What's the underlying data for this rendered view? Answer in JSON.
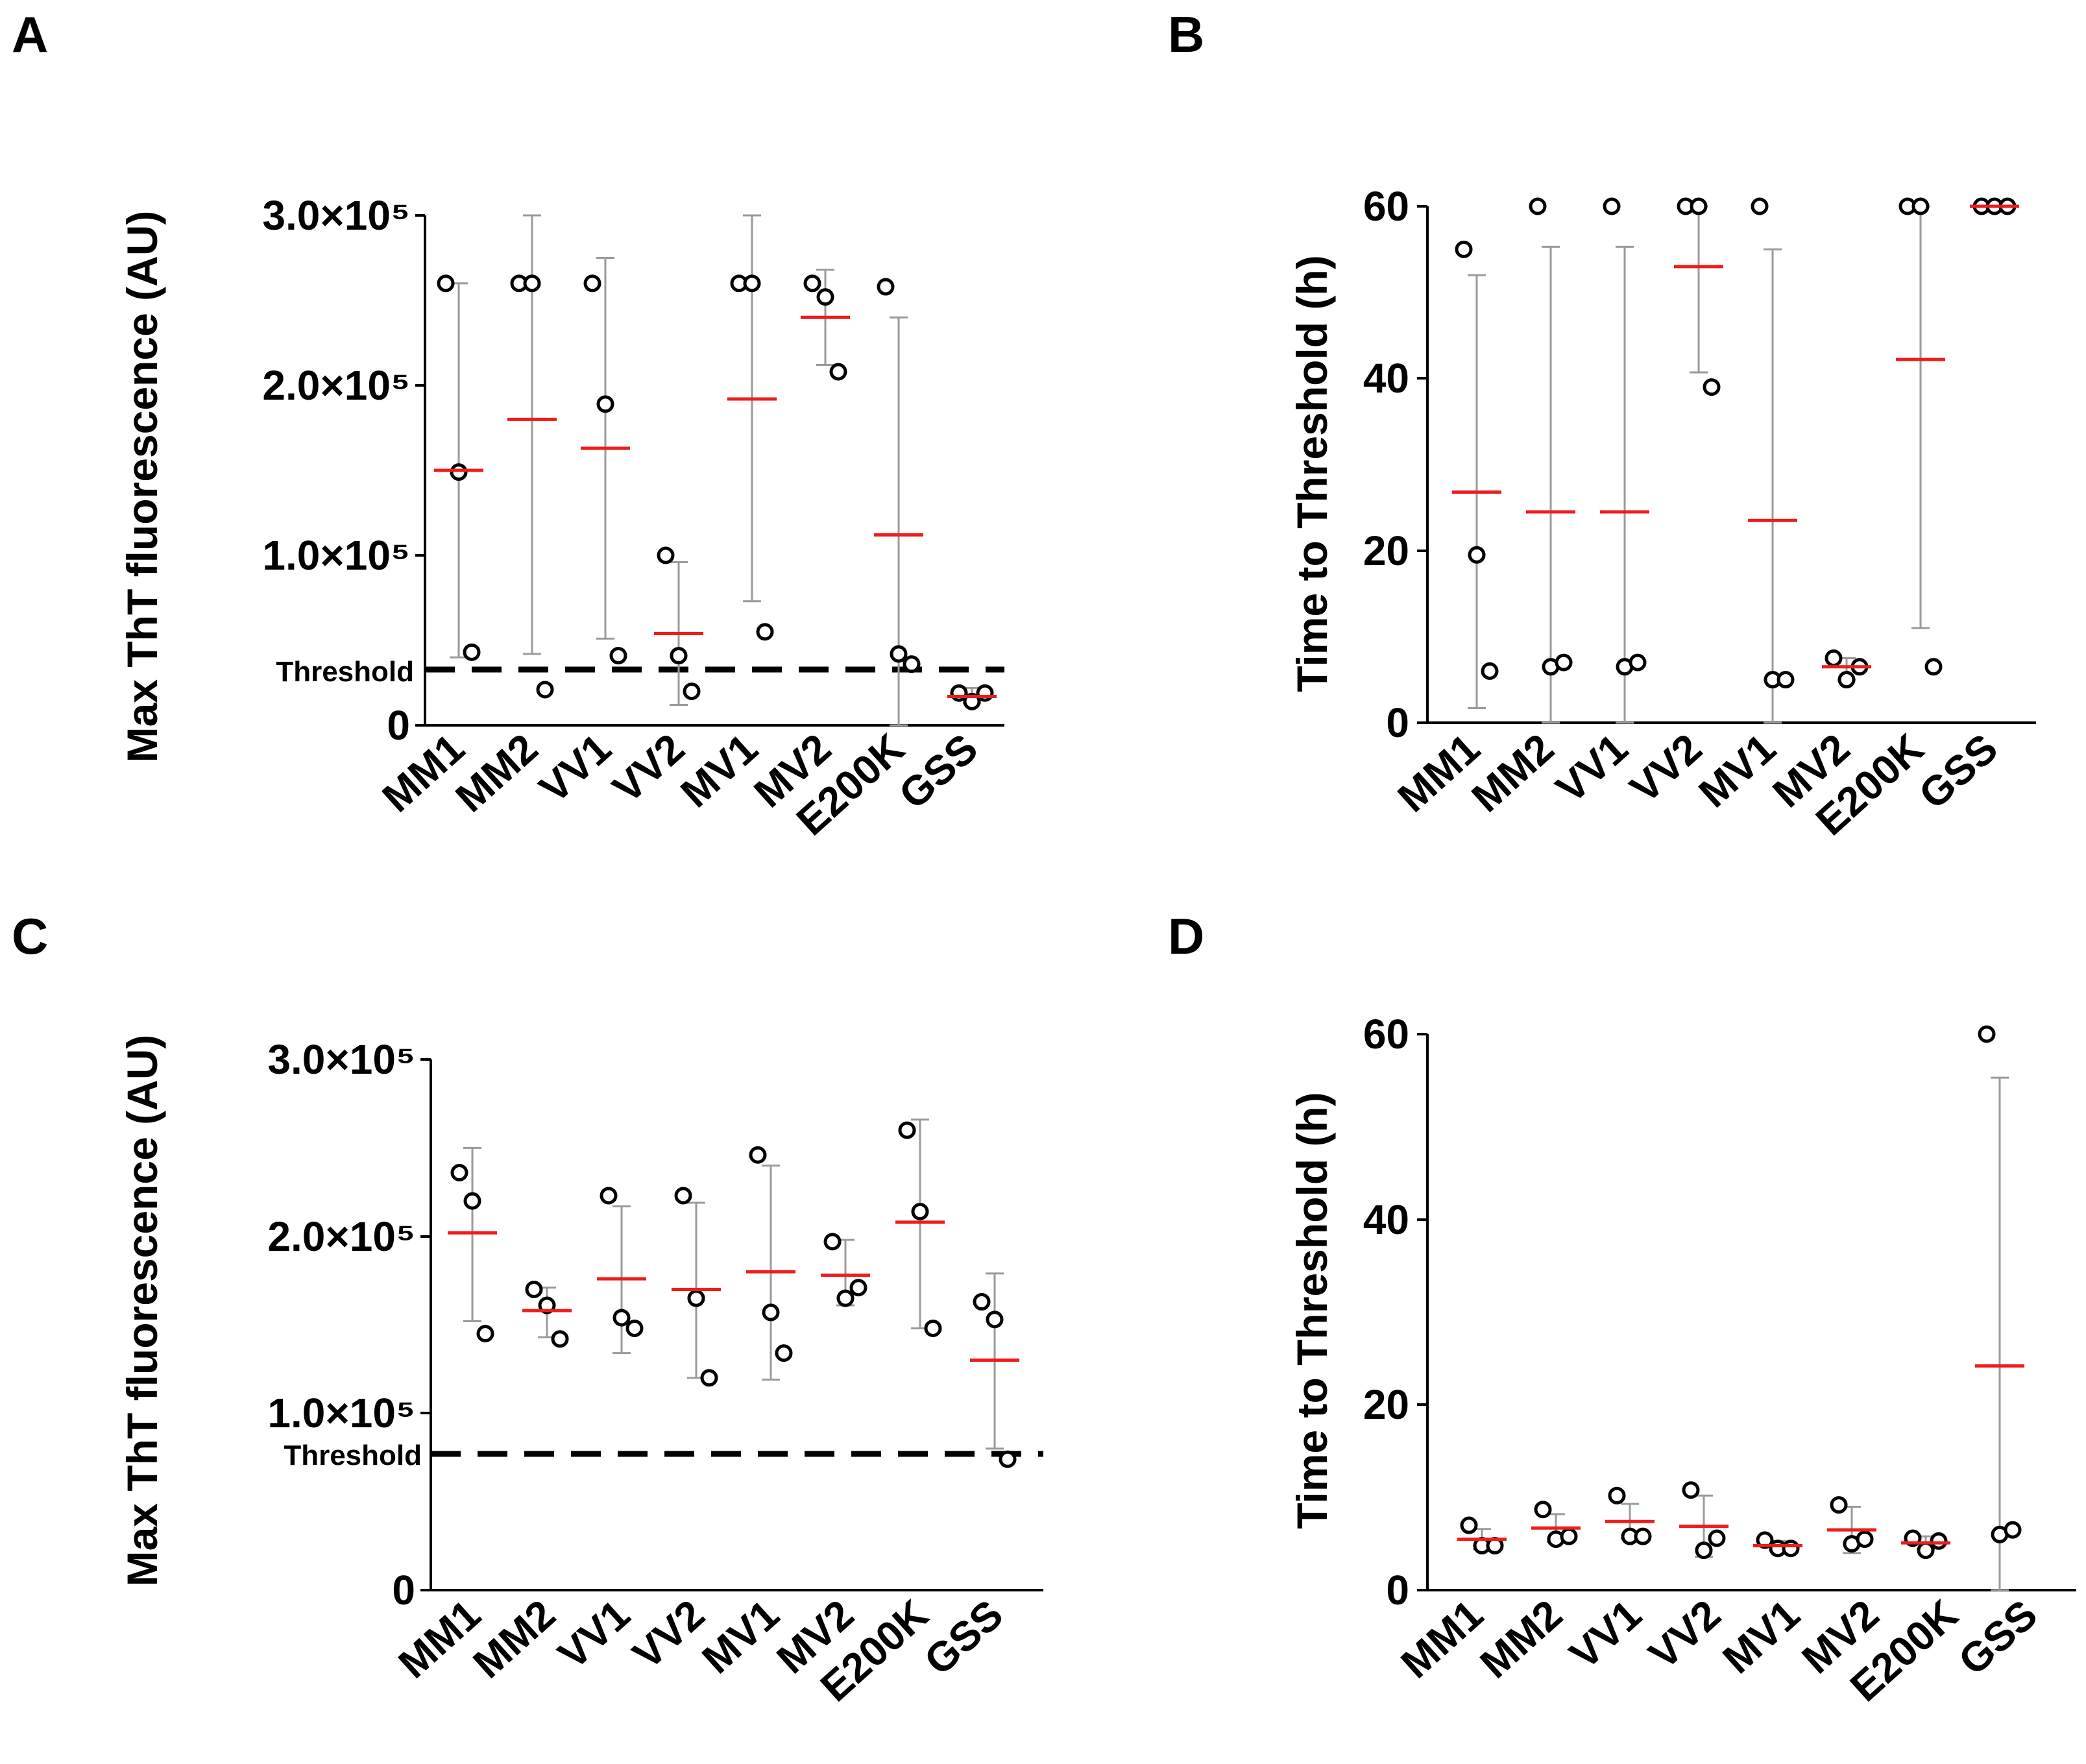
{
  "chart_data": [
    {
      "panel": "A",
      "type": "scatter",
      "ylabel": "Max ThT fluorescence (AU)",
      "ylim": [
        0,
        300000
      ],
      "yticks": [
        0,
        100000,
        200000,
        300000
      ],
      "ytick_labels": [
        "0",
        "1.0×10⁵",
        "2.0×10⁵",
        "3.0×10⁵"
      ],
      "threshold": {
        "label": "Threshold",
        "value": 33000
      },
      "categories": [
        "MM1",
        "MM2",
        "VV1",
        "VV2",
        "MV1",
        "MV2",
        "E200K",
        "GSS"
      ],
      "points": [
        [
          260000,
          149000,
          43000
        ],
        [
          260000,
          260000,
          21000
        ],
        [
          260000,
          189000,
          41000
        ],
        [
          100000,
          41000,
          20000
        ],
        [
          260000,
          260000,
          55000
        ],
        [
          260000,
          252000,
          208000
        ],
        [
          258000,
          42000,
          36000
        ],
        [
          19000,
          14000,
          19000
        ]
      ],
      "mean": [
        150000,
        180000,
        163000,
        54000,
        192000,
        240000,
        112000,
        17000
      ],
      "error": [
        [
          40000,
          260000
        ],
        [
          42000,
          300000
        ],
        [
          51000,
          275000
        ],
        [
          12000,
          96000
        ],
        [
          73000,
          300000
        ],
        [
          212000,
          268000
        ],
        [
          0,
          240000
        ],
        [
          13000,
          22000
        ]
      ]
    },
    {
      "panel": "B",
      "type": "scatter",
      "ylabel": "Time to Threshold (h)",
      "ylim": [
        0,
        60
      ],
      "yticks": [
        0,
        20,
        40,
        60
      ],
      "ytick_labels": [
        "0",
        "20",
        "40",
        "60"
      ],
      "categories": [
        "MM1",
        "MM2",
        "VV1",
        "VV2",
        "MV1",
        "MV2",
        "E200K",
        "GSS"
      ],
      "points": [
        [
          55,
          19.5,
          6
        ],
        [
          60,
          6.5,
          7
        ],
        [
          60,
          6.5,
          7
        ],
        [
          60,
          60,
          39
        ],
        [
          60,
          5,
          5
        ],
        [
          7.5,
          5,
          6.5
        ],
        [
          60,
          60,
          6.5
        ],
        [
          60,
          60,
          60
        ]
      ],
      "mean": [
        26.8,
        24.5,
        24.5,
        53,
        23.5,
        6.5,
        42.2,
        60
      ],
      "error": [
        [
          1.7,
          52
        ],
        [
          0,
          55.3
        ],
        [
          0,
          55.3
        ],
        [
          40.7,
          60
        ],
        [
          0,
          55
        ],
        [
          5,
          7.5
        ],
        [
          11,
          60
        ],
        [
          60,
          60
        ]
      ]
    },
    {
      "panel": "C",
      "type": "scatter",
      "ylabel": "Max ThT fluorescence (AU)",
      "ylim": [
        0,
        300000
      ],
      "yticks": [
        0,
        100000,
        200000,
        300000
      ],
      "ytick_labels": [
        "0",
        "1.0×10⁵",
        "2.0×10⁵",
        "3.0×10⁵"
      ],
      "threshold": {
        "label": "Threshold",
        "value": 77000
      },
      "categories": [
        "MM1",
        "MM2",
        "VV1",
        "VV2",
        "MV1",
        "MV2",
        "E200K",
        "GSS"
      ],
      "points": [
        [
          236000,
          220000,
          145000
        ],
        [
          170000,
          161000,
          142000
        ],
        [
          223000,
          154000,
          148000
        ],
        [
          223000,
          165000,
          120000
        ],
        [
          246000,
          157000,
          134000
        ],
        [
          197000,
          165000,
          171000
        ],
        [
          260000,
          214000,
          148000
        ],
        [
          163000,
          153000,
          74000
        ]
      ],
      "mean": [
        202000,
        158000,
        176000,
        170000,
        180000,
        178000,
        208000,
        130000
      ],
      "error": [
        [
          152000,
          250000
        ],
        [
          143000,
          171000
        ],
        [
          134000,
          217000
        ],
        [
          120000,
          219000
        ],
        [
          119000,
          240000
        ],
        [
          161000,
          198000
        ],
        [
          148000,
          266000
        ],
        [
          80000,
          179000
        ]
      ]
    },
    {
      "panel": "D",
      "type": "scatter",
      "ylabel": "Time to Threshold (h)",
      "ylim": [
        0,
        60
      ],
      "yticks": [
        0,
        20,
        40,
        60
      ],
      "ytick_labels": [
        "0",
        "20",
        "40",
        "60"
      ],
      "categories": [
        "MM1",
        "MM2",
        "VV1",
        "VV2",
        "MV1",
        "MV2",
        "E200K",
        "GSS"
      ],
      "points": [
        [
          7,
          4.8,
          4.8
        ],
        [
          8.7,
          5.5,
          5.8
        ],
        [
          10.2,
          5.8,
          5.8
        ],
        [
          10.8,
          4.3,
          5.6
        ],
        [
          5.4,
          4.5,
          4.5
        ],
        [
          9.2,
          5,
          5.5
        ],
        [
          5.6,
          4.3,
          5.3
        ],
        [
          60,
          6,
          6.5
        ]
      ],
      "mean": [
        5.5,
        6.7,
        7.4,
        6.9,
        4.8,
        6.5,
        5.1,
        24.2
      ],
      "error": [
        [
          4.4,
          6.6
        ],
        [
          5.2,
          8.2
        ],
        [
          5.5,
          9.3
        ],
        [
          3.6,
          10.2
        ],
        [
          4.3,
          5.3
        ],
        [
          4,
          9
        ],
        [
          4.4,
          5.8
        ],
        [
          0,
          55.3
        ]
      ]
    }
  ]
}
